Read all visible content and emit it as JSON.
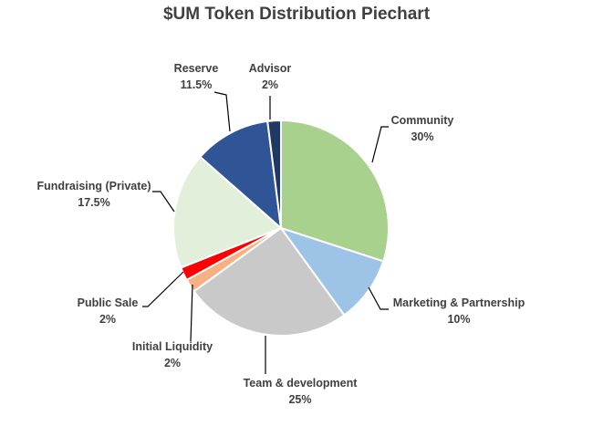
{
  "chart_data": {
    "type": "pie",
    "title": "$UM Token Distribution Piechart",
    "slices": [
      {
        "label": "Community",
        "value": 30,
        "value_label": "30%",
        "color": "#a9d18e"
      },
      {
        "label": "Marketing & Partnership",
        "value": 10,
        "value_label": "10%",
        "color": "#9dc3e6"
      },
      {
        "label": "Team & development",
        "value": 25,
        "value_label": "25%",
        "color": "#c9c9c9"
      },
      {
        "label": "Initial Liquidity",
        "value": 2,
        "value_label": "2%",
        "color": "#f4b183"
      },
      {
        "label": "Public Sale",
        "value": 2,
        "value_label": "2%",
        "color": "#ff0000"
      },
      {
        "label": "Fundraising (Private)",
        "value": 17.5,
        "value_label": "17.5%",
        "color": "#e2efda"
      },
      {
        "label": "Reserve",
        "value": 11.5,
        "value_label": "11.5%",
        "color": "#2f5597"
      },
      {
        "label": "Advisor",
        "value": 2,
        "value_label": "2%",
        "color": "#1f3864"
      }
    ],
    "start_angle": "12 o'clock",
    "direction": "clockwise",
    "legend": "none"
  }
}
